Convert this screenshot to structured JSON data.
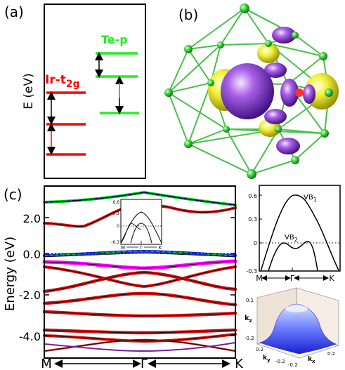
{
  "panel_labels": {
    "a": "(a)",
    "b": "(b)",
    "c": "(c)"
  },
  "panel_a": {
    "ylabel": "E (eV)",
    "ir_label_main": "Ir-t",
    "ir_label_sub": "2g",
    "te_label": "Te-p",
    "colors": {
      "ir": "#ff0000",
      "te": "#22ee22"
    }
  },
  "panel_c": {
    "ylabel": "Energy (eV)",
    "ytick_labels": [
      "2.0",
      "0.0",
      "-2.0",
      "-4.0"
    ],
    "xtick_labels": [
      "M",
      "Γ",
      "K"
    ],
    "inset": {
      "ytick_labels": [
        "0.6",
        "0.3",
        "0",
        "-0.3"
      ],
      "xtick_labels": [
        "M",
        "Γ",
        "K"
      ]
    },
    "colors": {
      "band": "#000000",
      "ir_fat": "#ff0000",
      "te_fat": "#00cc00",
      "blue_fat": "#1122cc",
      "magenta_fat": "#ff00ff"
    }
  },
  "vb_panel": {
    "ytick_labels": [
      "0.6",
      "0.3",
      "0",
      "-0.3"
    ],
    "xtick_labels": [
      "M",
      "Γ",
      "K"
    ],
    "vb1_main": "VB",
    "vb1_sub": "1",
    "vb2_main": "VB",
    "vb2_sub": "2"
  },
  "surface_panel": {
    "kz_label": "k",
    "kz_sub": "z",
    "ky_label": "k",
    "ky_sub": "y",
    "kx_label": "k",
    "kx_sub": "x",
    "kz_ticks": [
      "0.1",
      "-0.2"
    ],
    "ky_ticks": [
      "0.2",
      "-0.2"
    ],
    "kx_ticks": [
      "-0.2",
      "0.2"
    ],
    "surface_color": "#4040ff"
  }
}
